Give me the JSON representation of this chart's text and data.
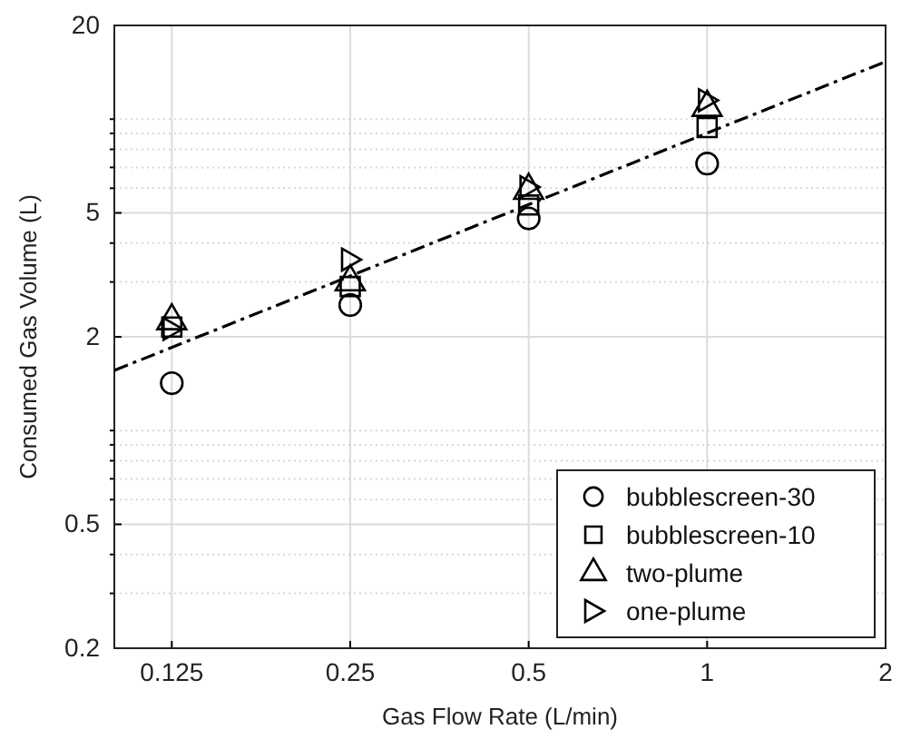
{
  "chart_data": {
    "type": "scatter",
    "xlabel": "Gas Flow Rate (L/min)",
    "ylabel": "Consumed Gas Volume (L)",
    "log": "xy",
    "xlim": [
      0.1,
      2
    ],
    "ylim": [
      0.2,
      20
    ],
    "xticks": [
      0.125,
      0.25,
      0.5,
      1,
      2
    ],
    "yticks": [
      0.2,
      {
        "value": 0.3,
        "label": null
      },
      {
        "value": 0.4,
        "label": null
      },
      0.5,
      {
        "value": 0.6,
        "label": null
      },
      {
        "value": 0.7,
        "label": null
      },
      {
        "value": 0.8,
        "label": null
      },
      {
        "value": 0.9,
        "label": null
      },
      {
        "value": 1,
        "label": null
      },
      2,
      {
        "value": 3,
        "label": null
      },
      {
        "value": 4,
        "label": null
      },
      5,
      {
        "value": 6,
        "label": null
      },
      {
        "value": 7,
        "label": null
      },
      {
        "value": 8,
        "label": null
      },
      {
        "value": 9,
        "label": null
      },
      {
        "value": 10,
        "label": null
      },
      20
    ],
    "grid": true,
    "legend": "bottom right",
    "x": [
      0.125,
      0.25,
      0.5,
      1
    ],
    "series": [
      {
        "name": "bubblescreen-30",
        "color": "#000000",
        "marker": "circle",
        "values": [
          1.42,
          2.53,
          4.8,
          7.2
        ]
      },
      {
        "name": "bubblescreen-10",
        "color": "#000000",
        "marker": "square",
        "values": [
          2.15,
          2.9,
          5.3,
          9.4
        ]
      },
      {
        "name": "two-plume",
        "color": "#000000",
        "marker": "triangle",
        "values": [
          2.25,
          3.0,
          5.9,
          10.9
        ]
      },
      {
        "name": "one-plume",
        "color": "#000000",
        "marker": "triangle-right",
        "values": [
          2.12,
          3.54,
          6.05,
          11.5
        ]
      },
      {
        "type": "line",
        "color": "#000000",
        "line_style": "dashdot",
        "x": [
          0.1,
          2
        ],
        "values": [
          1.56,
          15.3
        ]
      }
    ]
  }
}
